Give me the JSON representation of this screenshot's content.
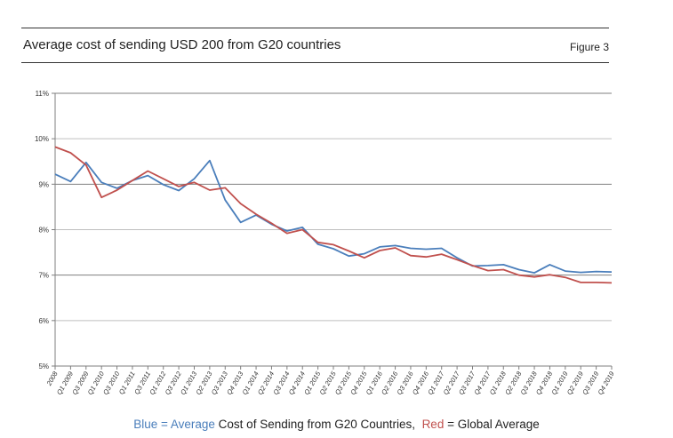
{
  "header": {
    "title": "Average cost of sending USD 200 from G20 countries",
    "figure_label": "Figure 3"
  },
  "legend": {
    "blue_word": "Blue",
    "blue_text": " = Average",
    "blue_rest": " Cost of Sending from G20 Countries,",
    "red_word": "Red",
    "red_rest": " = Global Average"
  },
  "colors": {
    "blue_series": "#4a7ebb",
    "red_series": "#c0504d",
    "gridline": "#7f7f7f"
  },
  "chart_data": {
    "type": "line",
    "title": "Average cost of sending USD 200 from G20 countries",
    "xlabel": "",
    "ylabel": "",
    "ylim": [
      5,
      11
    ],
    "yticks": [
      "5%",
      "6%",
      "7%",
      "8%",
      "9%",
      "10%",
      "11%"
    ],
    "grid": true,
    "categories": [
      "2008",
      "Q1 2009",
      "Q3 2009",
      "Q1 2010",
      "Q3 2010",
      "Q1 2011",
      "Q3 2011",
      "Q1 2012",
      "Q3 2012",
      "Q1 2013",
      "Q2 2013",
      "Q3 2013",
      "Q4 2013",
      "Q1 2014",
      "Q2 2014",
      "Q3 2014",
      "Q4 2014",
      "Q1 2015",
      "Q2 2015",
      "Q3 2015",
      "Q4 2015",
      "Q1 2016",
      "Q2 2016",
      "Q3 2016",
      "Q4 2016",
      "Q1 2017",
      "Q2 2017",
      "Q3 2017",
      "Q4 2017",
      "Q1 2018",
      "Q2 2018",
      "Q3 2018",
      "Q4 2018",
      "Q1 2019",
      "Q2 2019",
      "Q3 2019",
      "Q4 2019"
    ],
    "series": [
      {
        "color": "#4a7ebb",
        "values": [
          9.22,
          9.06,
          9.48,
          9.04,
          8.91,
          9.08,
          9.19,
          8.99,
          8.86,
          9.12,
          9.52,
          8.65,
          8.16,
          8.32,
          8.12,
          7.97,
          8.05,
          7.68,
          7.58,
          7.42,
          7.47,
          7.62,
          7.65,
          7.59,
          7.57,
          7.59,
          7.38,
          7.2,
          7.21,
          7.23,
          7.12,
          7.05,
          7.23,
          7.09,
          7.06,
          7.08,
          7.07
        ]
      },
      {
        "color": "#c0504d",
        "values": [
          9.82,
          9.69,
          9.42,
          8.71,
          8.87,
          9.08,
          9.29,
          9.12,
          8.95,
          9.04,
          8.87,
          8.92,
          8.57,
          8.34,
          8.14,
          7.92,
          8.0,
          7.72,
          7.67,
          7.53,
          7.38,
          7.54,
          7.6,
          7.43,
          7.4,
          7.46,
          7.34,
          7.21,
          7.1,
          7.12,
          7.0,
          6.96,
          7.01,
          6.95,
          6.84,
          6.84,
          6.83
        ]
      }
    ]
  }
}
